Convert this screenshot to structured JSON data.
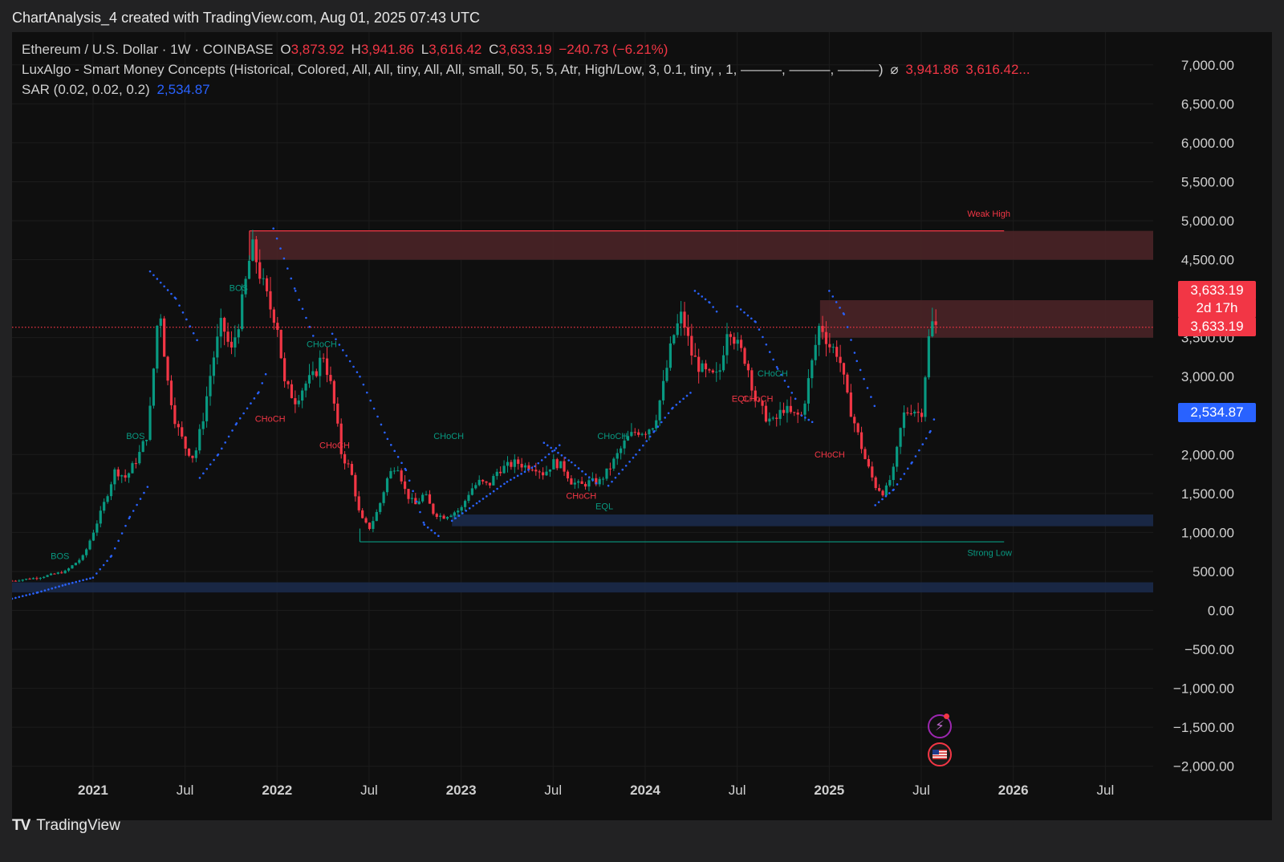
{
  "header": {
    "title": "ChartAnalysis_4 created with TradingView.com, Aug 01, 2025 07:43 UTC"
  },
  "legend": {
    "symbol": "Ethereum / U.S. Dollar · 1W · COINBASE",
    "o_label": "O",
    "o_value": "3,873.92",
    "h_label": "H",
    "h_value": "3,941.86",
    "l_label": "L",
    "l_value": "3,616.42",
    "c_label": "C",
    "c_value": "3,633.19",
    "change": "−240.73 (−6.21%)",
    "indicator": "LuxAlgo - Smart Money Concepts (Historical, Colored, All, All, tiny, All, All, small, 50, 5, 5, Atr, High/Low, 3, 0.1, tiny, , 1, ———, ———, ———)",
    "indicator_symbol": "⌀",
    "indicator_v1": "3,941.86",
    "indicator_v2": "3,616.42...",
    "sar_label": "SAR (0.02, 0.02, 0.2)",
    "sar_value": "2,534.87"
  },
  "price_labels": {
    "last_price": "3,633.19",
    "countdown": "2d 17h",
    "last_price_2": "3,633.19",
    "sar": "2,534.87"
  },
  "footer": {
    "brand": "TradingView",
    "logo_mark": "TV"
  },
  "icons": {
    "flash": "lightning-icon",
    "flag": "us-flag-icon"
  },
  "colors": {
    "background": "#0f0f0f",
    "up": "#089981",
    "down": "#f23645",
    "sar": "#2962ff",
    "bearish_zone": "#4a2427",
    "bullish_zone": "#1b2a4a"
  },
  "chart_data": {
    "type": "candlestick",
    "title": "Ethereum / U.S. Dollar · 1W · COINBASE",
    "xlabel": "",
    "ylabel": "",
    "ylim": [
      -2000,
      7000
    ],
    "y_ticks": [
      "7,000.00",
      "6,500.00",
      "6,000.00",
      "5,500.00",
      "5,000.00",
      "4,500.00",
      "3,500.00",
      "3,000.00",
      "2,000.00",
      "1,500.00",
      "1,000.00",
      "500.00",
      "0.00",
      "−500.00",
      "−1,000.00",
      "−1,500.00",
      "−2,000.00"
    ],
    "y_tick_values": [
      7000,
      6500,
      6000,
      5500,
      5000,
      4500,
      3500,
      3000,
      2000,
      1500,
      1000,
      500,
      0,
      -500,
      -1000,
      -1500,
      -2000
    ],
    "x_ticks": [
      "2021",
      "Jul",
      "2022",
      "Jul",
      "2023",
      "Jul",
      "2024",
      "Jul",
      "2025",
      "Jul",
      "2026",
      "Jul"
    ],
    "x_tick_values": [
      2021.0,
      2021.5,
      2022.0,
      2022.5,
      2023.0,
      2023.5,
      2024.0,
      2024.5,
      2025.0,
      2025.5,
      2026.0,
      2026.5
    ],
    "xlim": [
      2020.56,
      2026.76
    ],
    "last_close": 3633.19,
    "sar_value": 2534.87,
    "price_path": [
      [
        2020.56,
        380
      ],
      [
        2020.7,
        420
      ],
      [
        2020.85,
        500
      ],
      [
        2020.95,
        700
      ],
      [
        2021.05,
        1300
      ],
      [
        2021.12,
        1800
      ],
      [
        2021.18,
        1700
      ],
      [
        2021.25,
        2000
      ],
      [
        2021.3,
        2300
      ],
      [
        2021.34,
        3400
      ],
      [
        2021.36,
        4000
      ],
      [
        2021.4,
        3000
      ],
      [
        2021.45,
        2400
      ],
      [
        2021.5,
        2100
      ],
      [
        2021.55,
        1950
      ],
      [
        2021.6,
        2500
      ],
      [
        2021.65,
        3200
      ],
      [
        2021.7,
        3700
      ],
      [
        2021.75,
        3300
      ],
      [
        2021.8,
        3800
      ],
      [
        2021.85,
        4500
      ],
      [
        2021.87,
        4650
      ],
      [
        2021.92,
        4200
      ],
      [
        2021.96,
        3900
      ],
      [
        2022.0,
        3700
      ],
      [
        2022.04,
        2900
      ],
      [
        2022.1,
        2700
      ],
      [
        2022.15,
        2900
      ],
      [
        2022.2,
        3000
      ],
      [
        2022.25,
        3300
      ],
      [
        2022.3,
        2800
      ],
      [
        2022.35,
        2000
      ],
      [
        2022.4,
        1800
      ],
      [
        2022.45,
        1200
      ],
      [
        2022.5,
        1050
      ],
      [
        2022.55,
        1300
      ],
      [
        2022.6,
        1700
      ],
      [
        2022.65,
        1900
      ],
      [
        2022.7,
        1500
      ],
      [
        2022.75,
        1350
      ],
      [
        2022.8,
        1500
      ],
      [
        2022.85,
        1250
      ],
      [
        2022.9,
        1200
      ],
      [
        2022.95,
        1250
      ],
      [
        2023.0,
        1300
      ],
      [
        2023.05,
        1550
      ],
      [
        2023.1,
        1650
      ],
      [
        2023.15,
        1600
      ],
      [
        2023.2,
        1800
      ],
      [
        2023.25,
        1850
      ],
      [
        2023.3,
        1900
      ],
      [
        2023.35,
        1850
      ],
      [
        2023.4,
        1850
      ],
      [
        2023.45,
        1750
      ],
      [
        2023.5,
        1900
      ],
      [
        2023.55,
        1850
      ],
      [
        2023.6,
        1650
      ],
      [
        2023.65,
        1600
      ],
      [
        2023.7,
        1650
      ],
      [
        2023.75,
        1650
      ],
      [
        2023.8,
        1800
      ],
      [
        2023.85,
        2000
      ],
      [
        2023.9,
        2200
      ],
      [
        2023.95,
        2300
      ],
      [
        2024.0,
        2300
      ],
      [
        2024.05,
        2400
      ],
      [
        2024.1,
        2900
      ],
      [
        2024.15,
        3500
      ],
      [
        2024.2,
        3800
      ],
      [
        2024.25,
        3300
      ],
      [
        2024.3,
        3100
      ],
      [
        2024.35,
        3000
      ],
      [
        2024.4,
        3000
      ],
      [
        2024.45,
        3700
      ],
      [
        2024.5,
        3400
      ],
      [
        2024.55,
        3200
      ],
      [
        2024.6,
        2700
      ],
      [
        2024.65,
        2500
      ],
      [
        2024.7,
        2400
      ],
      [
        2024.75,
        2600
      ],
      [
        2024.8,
        2500
      ],
      [
        2024.85,
        2500
      ],
      [
        2024.9,
        3100
      ],
      [
        2024.95,
        3700
      ],
      [
        2025.0,
        3400
      ],
      [
        2025.05,
        3300
      ],
      [
        2025.1,
        2700
      ],
      [
        2025.15,
        2300
      ],
      [
        2025.2,
        1900
      ],
      [
        2025.25,
        1600
      ],
      [
        2025.3,
        1500
      ],
      [
        2025.35,
        1800
      ],
      [
        2025.4,
        2500
      ],
      [
        2025.45,
        2600
      ],
      [
        2025.5,
        2500
      ],
      [
        2025.52,
        3000
      ],
      [
        2025.55,
        3700
      ],
      [
        2025.58,
        3633
      ]
    ],
    "zones": [
      {
        "name": "weak-high-zone",
        "from": 2021.85,
        "to": 2026.76,
        "low": 4500,
        "high": 4870,
        "color": "#4a2427"
      },
      {
        "name": "resistance-zone",
        "from": 2024.95,
        "to": 2026.76,
        "low": 3500,
        "high": 3980,
        "color": "#4a2427"
      },
      {
        "name": "support-zone",
        "from": 2022.95,
        "to": 2026.76,
        "low": 1080,
        "high": 1230,
        "color": "#1b2a4a"
      },
      {
        "name": "bottom-zone",
        "from": 2020.56,
        "to": 2026.76,
        "low": 230,
        "high": 360,
        "color": "#1b2a4a"
      }
    ],
    "lines": [
      {
        "name": "weak-high-line",
        "from": 2021.85,
        "to": 2025.95,
        "value": 4870,
        "color": "#f23645"
      },
      {
        "name": "strong-low-line",
        "from": 2022.45,
        "to": 2025.95,
        "value": 880,
        "color": "#089981"
      },
      {
        "name": "last-price-line",
        "from": 2020.56,
        "to": 2026.76,
        "value": 3633,
        "color": "#f23645",
        "dotted": true
      }
    ],
    "annotations": [
      {
        "text": "Weak High",
        "x": 2025.75,
        "y": 5050,
        "color": "#f23645"
      },
      {
        "text": "Strong Low",
        "x": 2025.75,
        "y": 700,
        "color": "#089981"
      },
      {
        "text": "BOS",
        "x": 2020.77,
        "y": 660,
        "color": "#089981"
      },
      {
        "text": "BOS",
        "x": 2021.18,
        "y": 2200,
        "color": "#089981"
      },
      {
        "text": "BOS",
        "x": 2021.74,
        "y": 4100,
        "color": "#089981"
      },
      {
        "text": "CHoCH",
        "x": 2021.88,
        "y": 2420,
        "color": "#f23645"
      },
      {
        "text": "CHoCH",
        "x": 2022.16,
        "y": 3380,
        "color": "#089981"
      },
      {
        "text": "CHoCH",
        "x": 2022.23,
        "y": 2080,
        "color": "#f23645"
      },
      {
        "text": "CHoCH",
        "x": 2022.85,
        "y": 2200,
        "color": "#089981"
      },
      {
        "text": "CHoCH",
        "x": 2023.57,
        "y": 1430,
        "color": "#f23645"
      },
      {
        "text": "EQL",
        "x": 2023.73,
        "y": 1300,
        "color": "#089981"
      },
      {
        "text": "CHoCH",
        "x": 2023.74,
        "y": 2200,
        "color": "#089981"
      },
      {
        "text": "CHoCH",
        "x": 2024.61,
        "y": 3000,
        "color": "#089981"
      },
      {
        "text": "EQL",
        "x": 2024.47,
        "y": 2680,
        "color": "#f23645"
      },
      {
        "text": "CHoCH",
        "x": 2024.53,
        "y": 2680,
        "color": "#f23645"
      },
      {
        "text": "CHoCH",
        "x": 2024.92,
        "y": 1960,
        "color": "#f23645"
      }
    ],
    "sar_segments": [
      [
        [
          2020.56,
          150
        ],
        [
          2020.7,
          230
        ],
        [
          2020.85,
          330
        ],
        [
          2021.0,
          420
        ],
        [
          2021.1,
          700
        ],
        [
          2021.2,
          1200
        ],
        [
          2021.3,
          1600
        ]
      ],
      [
        [
          2021.31,
          4350
        ],
        [
          2021.45,
          4000
        ],
        [
          2021.58,
          3400
        ]
      ],
      [
        [
          2021.58,
          1700
        ],
        [
          2021.68,
          2000
        ],
        [
          2021.78,
          2400
        ],
        [
          2021.9,
          2800
        ],
        [
          2021.95,
          3100
        ]
      ],
      [
        [
          2021.98,
          4900
        ],
        [
          2022.1,
          4100
        ],
        [
          2022.2,
          3500
        ]
      ],
      [
        [
          2022.3,
          3550
        ],
        [
          2022.45,
          3000
        ],
        [
          2022.6,
          2200
        ],
        [
          2022.7,
          1800
        ],
        [
          2022.8,
          1100
        ],
        [
          2022.88,
          950
        ]
      ],
      [
        [
          2022.95,
          1150
        ],
        [
          2023.1,
          1400
        ],
        [
          2023.25,
          1650
        ],
        [
          2023.4,
          1850
        ],
        [
          2023.55,
          2150
        ]
      ],
      [
        [
          2023.45,
          2150
        ],
        [
          2023.6,
          1900
        ],
        [
          2023.75,
          1600
        ]
      ],
      [
        [
          2023.8,
          1600
        ],
        [
          2023.95,
          2000
        ],
        [
          2024.05,
          2300
        ],
        [
          2024.15,
          2600
        ],
        [
          2024.25,
          2800
        ]
      ],
      [
        [
          2024.27,
          4100
        ],
        [
          2024.35,
          3950
        ],
        [
          2024.4,
          3800
        ]
      ],
      [
        [
          2024.5,
          3900
        ],
        [
          2024.6,
          3700
        ],
        [
          2024.72,
          3100
        ],
        [
          2024.82,
          2700
        ]
      ],
      [
        [
          2024.85,
          2500
        ],
        [
          2024.92,
          2400
        ]
      ],
      [
        [
          2025.0,
          4100
        ],
        [
          2025.08,
          3800
        ],
        [
          2025.15,
          3200
        ],
        [
          2025.25,
          2600
        ]
      ],
      [
        [
          2025.25,
          1350
        ],
        [
          2025.35,
          1550
        ],
        [
          2025.45,
          1900
        ],
        [
          2025.55,
          2300
        ],
        [
          2025.58,
          2534
        ]
      ]
    ]
  }
}
